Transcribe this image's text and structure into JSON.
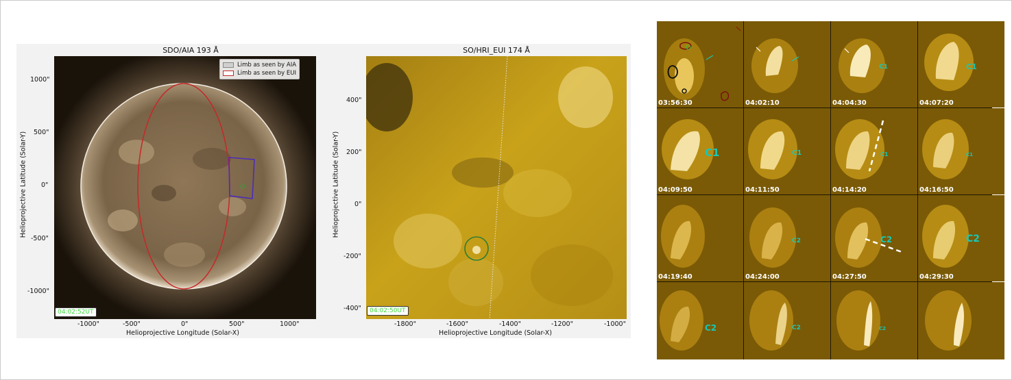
{
  "left_panel": {
    "title": "SDO/AIA 193 Å",
    "xlabel": "Helioprojective Longitude (Solar-X)",
    "ylabel": "Helioprojective Latitude (Solar-Y)",
    "xticks": [
      "-1000\"",
      "-500\"",
      "0\"",
      "500\"",
      "1000\""
    ],
    "yticks": [
      "1000\"",
      "500\"",
      "0\"",
      "-500\"",
      "-1000\""
    ],
    "legend": [
      {
        "label": "Limb as seen by AIA",
        "color": "#d0d0d0"
      },
      {
        "label": "Limb as seen by EUI",
        "color": "#c62828"
      }
    ],
    "timestamp": "04:02:52UT"
  },
  "middle_panel": {
    "title": "SO/HRI_EUI 174 Å",
    "xlabel": "Helioprojective Longitude (Solar-X)",
    "ylabel": "Helioprojective Latitude (Solar-Y)",
    "xticks": [
      "-1800\"",
      "-1600\"",
      "-1400\"",
      "-1200\"",
      "-1000\""
    ],
    "yticks": [
      "400\"",
      "200\"",
      "0\"",
      "-200\"",
      "-400\""
    ],
    "timestamp": "04:02:50UT"
  },
  "colors": {
    "aia_bg": "#1a130a",
    "aia_disk": "#8a7356",
    "eui_gold": "#c9a21a",
    "cyan_label": "#16c8b9",
    "eui_limb": "#c62828",
    "fov_box": "#4a2dbb"
  },
  "sequence": {
    "frames": [
      {
        "time": "03:56:30",
        "label": ""
      },
      {
        "time": "04:02:10",
        "label": ""
      },
      {
        "time": "04:04:30",
        "label": "C1"
      },
      {
        "time": "04:07:20",
        "label": "C1"
      },
      {
        "time": "04:09:50",
        "label": "C1"
      },
      {
        "time": "04:11:50",
        "label": "C1"
      },
      {
        "time": "04:14:20",
        "label": "C1"
      },
      {
        "time": "04:16:50",
        "label": "C1"
      },
      {
        "time": "04:19:40",
        "label": ""
      },
      {
        "time": "04:24:00",
        "label": "C2"
      },
      {
        "time": "04:27:50",
        "label": "C2"
      },
      {
        "time": "04:29:30",
        "label": "C2"
      },
      {
        "time": "",
        "label": "C2"
      },
      {
        "time": "",
        "label": "C2"
      },
      {
        "time": "",
        "label": "C2"
      },
      {
        "time": "",
        "label": ""
      }
    ]
  }
}
